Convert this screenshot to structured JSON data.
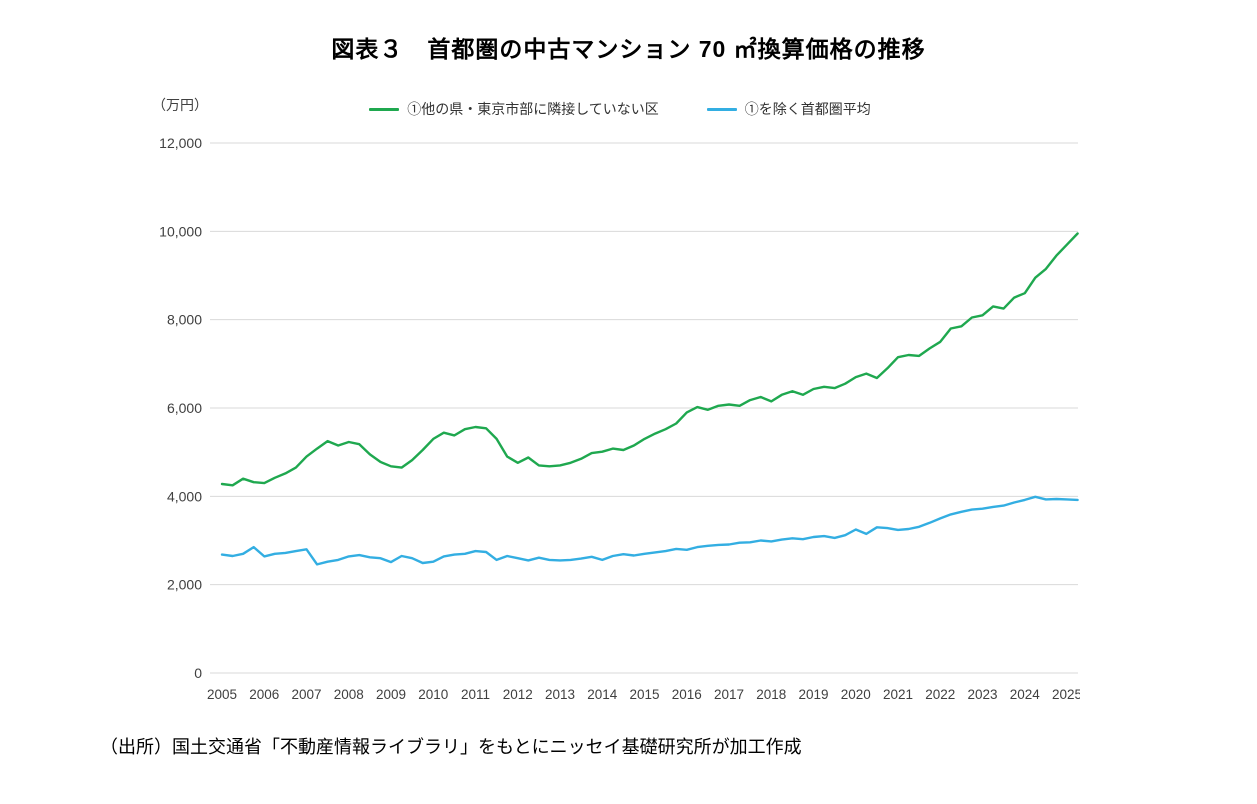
{
  "page": {
    "title": "図表３　首都圏の中古マンション 70 ㎡換算価格の推移",
    "unit_label": "（万円）",
    "source_note": "（出所）国土交通省「不動産情報ライブラリ」をもとにニッセイ基礎研究所が加工作成"
  },
  "legend": [
    {
      "label": "①他の県・東京市部に隣接していない区",
      "color": "#1FA84F"
    },
    {
      "label": "①を除く首都圏平均",
      "color": "#33AEE2"
    }
  ],
  "colors": {
    "gridline": "#d9d9d9",
    "tick_text": "#404040"
  },
  "chart_data": {
    "type": "line",
    "title": "図表３　首都圏の中古マンション 70 ㎡換算価格の推移",
    "ylabel": "（万円）",
    "xlabel": "",
    "ylim": [
      0,
      12000
    ],
    "y_ticks": [
      0,
      2000,
      4000,
      6000,
      8000,
      10000,
      12000
    ],
    "x_start": 2005.0,
    "x_step": 0.25,
    "x_tick_labels": [
      "2005",
      "2006",
      "2007",
      "2008",
      "2009",
      "2010",
      "2011",
      "2012",
      "2013",
      "2014",
      "2015",
      "2016",
      "2017",
      "2018",
      "2019",
      "2020",
      "2021",
      "2022",
      "2023",
      "2024",
      "2025"
    ],
    "grid": "horizontal",
    "legend_position": "top",
    "series": [
      {
        "name": "①他の県・東京市部に隣接していない区",
        "color": "#1FA84F",
        "values": [
          4280,
          4250,
          4400,
          4320,
          4300,
          4420,
          4520,
          4650,
          4900,
          5080,
          5250,
          5150,
          5230,
          5180,
          4950,
          4780,
          4680,
          4650,
          4820,
          5050,
          5300,
          5440,
          5380,
          5520,
          5570,
          5540,
          5300,
          4900,
          4760,
          4880,
          4700,
          4680,
          4700,
          4760,
          4850,
          4980,
          5010,
          5080,
          5050,
          5150,
          5300,
          5420,
          5520,
          5650,
          5900,
          6020,
          5960,
          6050,
          6080,
          6050,
          6180,
          6250,
          6150,
          6300,
          6380,
          6300,
          6430,
          6480,
          6450,
          6550,
          6700,
          6780,
          6680,
          6900,
          7150,
          7200,
          7180,
          7350,
          7500,
          7800,
          7850,
          8050,
          8100,
          8300,
          8250,
          8500,
          8600,
          8950,
          9150,
          9450,
          9700,
          9950
        ]
      },
      {
        "name": "①を除く首都圏平均",
        "color": "#33AEE2",
        "values": [
          2680,
          2650,
          2700,
          2850,
          2640,
          2700,
          2720,
          2760,
          2800,
          2460,
          2520,
          2560,
          2640,
          2670,
          2620,
          2600,
          2510,
          2650,
          2600,
          2490,
          2520,
          2640,
          2680,
          2700,
          2760,
          2740,
          2560,
          2650,
          2600,
          2550,
          2610,
          2560,
          2550,
          2560,
          2590,
          2630,
          2560,
          2650,
          2690,
          2660,
          2700,
          2730,
          2760,
          2810,
          2790,
          2850,
          2880,
          2900,
          2910,
          2950,
          2960,
          3000,
          2980,
          3020,
          3050,
          3030,
          3080,
          3100,
          3060,
          3120,
          3250,
          3150,
          3300,
          3280,
          3240,
          3260,
          3310,
          3400,
          3500,
          3590,
          3650,
          3700,
          3720,
          3760,
          3790,
          3860,
          3920,
          3990,
          3930,
          3940,
          3930,
          3920
        ]
      }
    ]
  }
}
